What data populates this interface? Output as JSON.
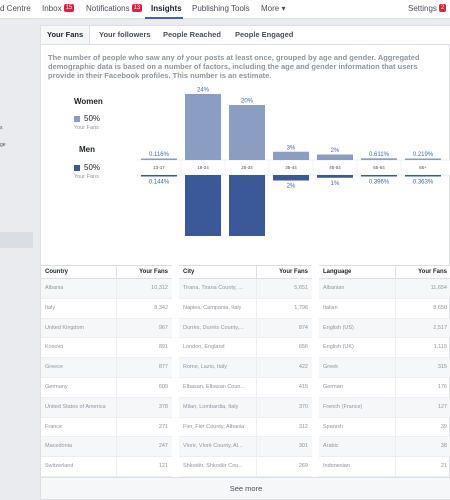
{
  "nav": {
    "items": [
      {
        "label": "d Centre",
        "badge": ""
      },
      {
        "label": "Inbox",
        "badge": "15"
      },
      {
        "label": "Notifications",
        "badge": "13"
      },
      {
        "label": "Insights",
        "badge": ""
      },
      {
        "label": "Publishing Tools",
        "badge": ""
      },
      {
        "label": "More ▾",
        "badge": ""
      }
    ],
    "settings": {
      "label": "Settings",
      "badge": "2"
    }
  },
  "sidebar": {
    "fragments": [
      "s",
      "ge"
    ]
  },
  "tabs": [
    "Your Fans",
    "Your followers",
    "People Reached",
    "People Engaged"
  ],
  "description": "The number of people who saw any of your posts at least once, grouped by age and gender. Aggregated demographic data is based on a number of factors, including the age and gender information that users provide in their Facebook profiles. This number is an estimate.",
  "legend": {
    "women": {
      "title": "Women",
      "pct": "50%",
      "sub": "Your Fans"
    },
    "men": {
      "title": "Men",
      "pct": "50%",
      "sub": "Your Fans"
    }
  },
  "chart_data": {
    "type": "bar",
    "categories": [
      "13-17",
      "18-24",
      "25-34",
      "35-44",
      "45-54",
      "55-64",
      "65+"
    ],
    "series": [
      {
        "name": "Women",
        "values": [
          0.116,
          24,
          20,
          3,
          2,
          0.611,
          0.219
        ],
        "labels": [
          "0.116%",
          "24%",
          "20%",
          "3%",
          "2%",
          "0.611%",
          "0.219%"
        ],
        "color": "#8b9dc3"
      },
      {
        "name": "Men",
        "values": [
          0.144,
          24,
          23,
          2,
          1,
          0.396,
          0.363
        ],
        "labels": [
          "0.144%",
          "24%",
          "23%",
          "2%",
          "1%",
          "0.396%",
          "0.363%"
        ],
        "color": "#3b5998"
      }
    ],
    "ylim": [
      0,
      24
    ]
  },
  "tables": [
    {
      "name_header": "Country",
      "fans_header": "Your Fans",
      "rows": [
        {
          "name": "Albania",
          "fans": "10,312"
        },
        {
          "name": "Italy",
          "fans": "8,342"
        },
        {
          "name": "United Kingdom",
          "fans": "967"
        },
        {
          "name": "Kosovo",
          "fans": "891"
        },
        {
          "name": "Greece",
          "fans": "877"
        },
        {
          "name": "Germany",
          "fans": "609"
        },
        {
          "name": "United States of America",
          "fans": "378"
        },
        {
          "name": "France",
          "fans": "271"
        },
        {
          "name": "Macedonia",
          "fans": "247"
        },
        {
          "name": "Switzerland",
          "fans": "121"
        }
      ]
    },
    {
      "name_header": "City",
      "fans_header": "Your Fans",
      "rows": [
        {
          "name": "Tirana, Tirana County, ...",
          "fans": "5,651"
        },
        {
          "name": "Naples, Campania, Italy",
          "fans": "1,796"
        },
        {
          "name": "Durrës, Durrës County,...",
          "fans": "874"
        },
        {
          "name": "London, England",
          "fans": "656"
        },
        {
          "name": "Rome, Lazio, Italy",
          "fans": "422"
        },
        {
          "name": "Elbasan, Elbasan Coun...",
          "fans": "415"
        },
        {
          "name": "Milan, Lombardia, Italy",
          "fans": "370"
        },
        {
          "name": "Fier, Fier County, Albania",
          "fans": "312"
        },
        {
          "name": "Vlorë, Vlorë County, Al...",
          "fans": "301"
        },
        {
          "name": "Shkodër, Shkodër Cou...",
          "fans": "269"
        }
      ]
    },
    {
      "name_header": "Language",
      "fans_header": "Your Fans",
      "rows": [
        {
          "name": "Albanian",
          "fans": "11,654"
        },
        {
          "name": "Italian",
          "fans": "8,650"
        },
        {
          "name": "English (US)",
          "fans": "2,517"
        },
        {
          "name": "English (UK)",
          "fans": "1,119"
        },
        {
          "name": "Greek",
          "fans": "315"
        },
        {
          "name": "German",
          "fans": "176"
        },
        {
          "name": "French (France)",
          "fans": "127"
        },
        {
          "name": "Spanish",
          "fans": "39"
        },
        {
          "name": "Arabic",
          "fans": "38"
        },
        {
          "name": "Indonesian",
          "fans": "21"
        }
      ]
    }
  ],
  "see_more": "See more"
}
